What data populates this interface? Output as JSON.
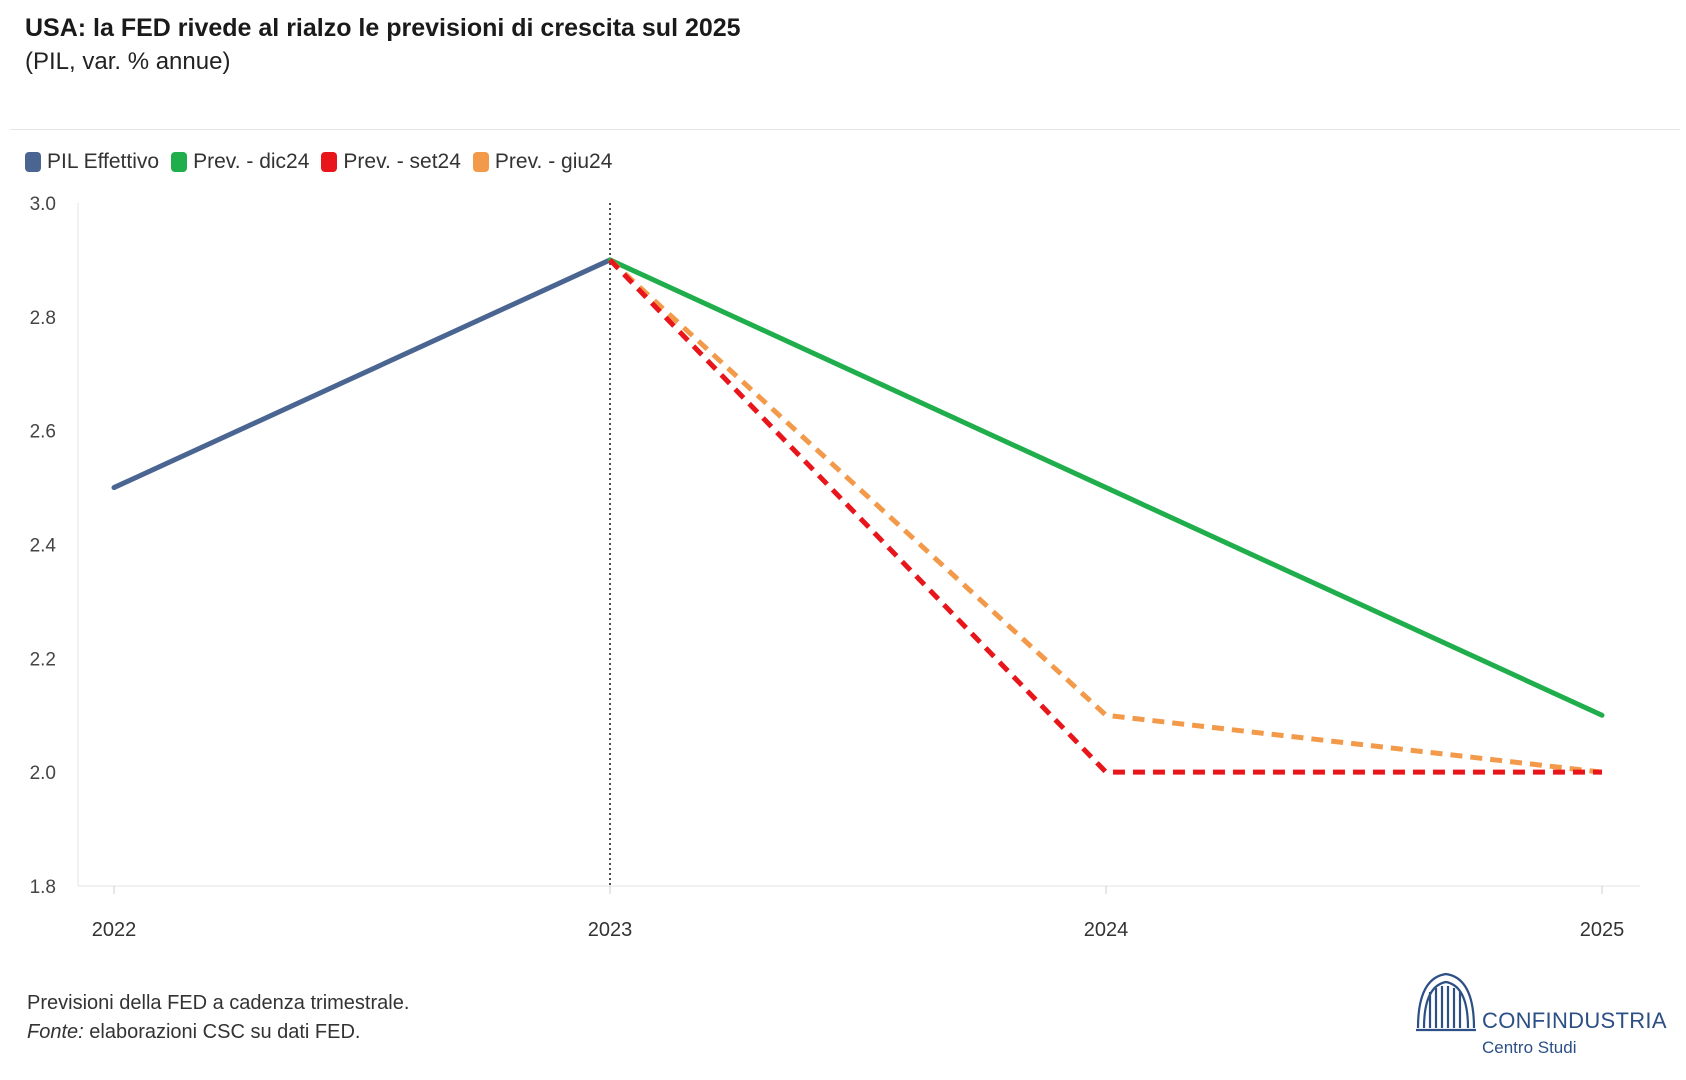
{
  "header": {
    "title": "USA: la FED rivede al rialzo le previsioni di crescita sul 2025",
    "subtitle": "(PIL, var. % annue)"
  },
  "legend": [
    {
      "label": "PIL Effettivo",
      "color": "#4a6592"
    },
    {
      "label": "Prev. - dic24",
      "color": "#1fae4b"
    },
    {
      "label": "Prev. - set24",
      "color": "#e8151b"
    },
    {
      "label": "Prev. - giu24",
      "color": "#f39a4a"
    }
  ],
  "chart_data": {
    "type": "line",
    "x": [
      "2022",
      "2023",
      "2024",
      "2025"
    ],
    "ylim": [
      1.8,
      3.0
    ],
    "yticks": [
      "3.0",
      "2.8",
      "2.6",
      "2.4",
      "2.2",
      "2.0",
      "1.8"
    ],
    "reference_line_x": "2023",
    "series": [
      {
        "name": "PIL Effettivo",
        "color": "#4a6592",
        "dashed": false,
        "x": [
          "2022",
          "2023"
        ],
        "y": [
          2.5,
          2.9
        ]
      },
      {
        "name": "Prev. - dic24",
        "color": "#1fae4b",
        "dashed": false,
        "x": [
          "2023",
          "2024",
          "2025"
        ],
        "y": [
          2.9,
          2.5,
          2.1
        ]
      },
      {
        "name": "Prev. - giu24",
        "color": "#f39a4a",
        "dashed": true,
        "x": [
          "2023",
          "2024",
          "2025"
        ],
        "y": [
          2.9,
          2.1,
          2.0
        ]
      },
      {
        "name": "Prev. - set24",
        "color": "#e8151b",
        "dashed": true,
        "x": [
          "2023",
          "2024",
          "2025"
        ],
        "y": [
          2.9,
          2.0,
          2.0
        ]
      }
    ]
  },
  "notes": {
    "line1": "Previsioni della FED a cadenza trimestrale.",
    "source_label": "Fonte:",
    "source_text": " elaborazioni CSC su dati FED."
  },
  "logo": {
    "name": "CONFINDUSTRIA",
    "sub": "Centro Studi"
  }
}
